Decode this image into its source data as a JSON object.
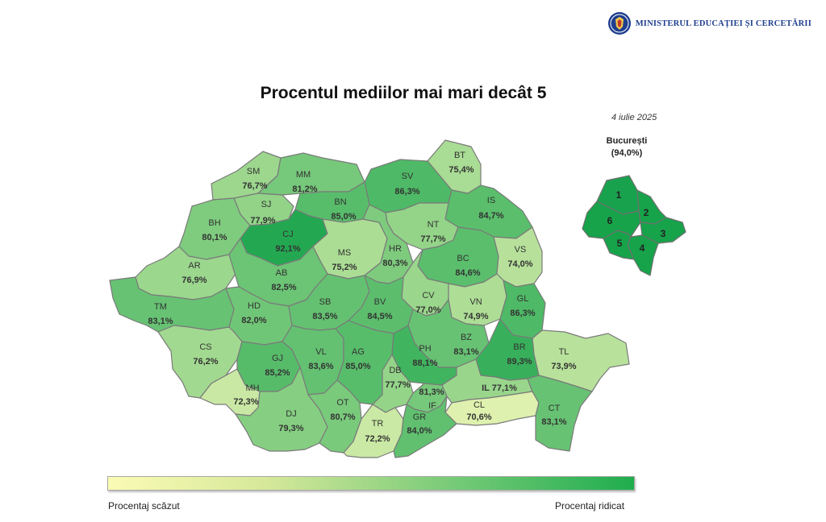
{
  "header": {
    "ministry": "MINISTERUL EDUCAȚIEI ȘI CERCETĂRII",
    "emblem_icon": "coat-of-arms-icon"
  },
  "title": "Procentul mediilor mai mari decât 5",
  "date": "4 iulie 2025",
  "bucharest": {
    "label": "București",
    "value": "(94,0%)",
    "sectors": [
      "1",
      "2",
      "3",
      "4",
      "5",
      "6"
    ]
  },
  "legend": {
    "low": "Procentaj scăzut",
    "high": "Procentaj ridicat",
    "color_low": "#fbfbb5",
    "color_high": "#1fad4e"
  },
  "counties": [
    {
      "code": "SM",
      "value": 76.7,
      "label": "76,7%"
    },
    {
      "code": "MM",
      "value": 81.2,
      "label": "81,2%"
    },
    {
      "code": "BT",
      "value": 75.4,
      "label": "75,4%"
    },
    {
      "code": "SV",
      "value": 86.3,
      "label": "86,3%"
    },
    {
      "code": "SJ",
      "value": 77.9,
      "label": "77,9%"
    },
    {
      "code": "BN",
      "value": 85.0,
      "label": "85,0%"
    },
    {
      "code": "IS",
      "value": 84.7,
      "label": "84,7%"
    },
    {
      "code": "BH",
      "value": 80.1,
      "label": "80,1%"
    },
    {
      "code": "CJ",
      "value": 92.1,
      "label": "92,1%"
    },
    {
      "code": "NT",
      "value": 77.7,
      "label": "77,7%"
    },
    {
      "code": "MS",
      "value": 75.2,
      "label": "75,2%"
    },
    {
      "code": "HR",
      "value": 80.3,
      "label": "80,3%"
    },
    {
      "code": "BC",
      "value": 84.6,
      "label": "84,6%"
    },
    {
      "code": "VS",
      "value": 74.0,
      "label": "74,0%"
    },
    {
      "code": "AR",
      "value": 76.9,
      "label": "76,9%"
    },
    {
      "code": "AB",
      "value": 82.5,
      "label": "82,5%"
    },
    {
      "code": "CV",
      "value": 77.0,
      "label": "77,0%"
    },
    {
      "code": "VN",
      "value": 74.9,
      "label": "74,9%"
    },
    {
      "code": "GL",
      "value": 86.3,
      "label": "86,3%"
    },
    {
      "code": "TM",
      "value": 83.1,
      "label": "83,1%"
    },
    {
      "code": "HD",
      "value": 82.0,
      "label": "82,0%"
    },
    {
      "code": "SB",
      "value": 83.5,
      "label": "83,5%"
    },
    {
      "code": "BV",
      "value": 84.5,
      "label": "84,5%"
    },
    {
      "code": "BZ",
      "value": 83.1,
      "label": "83,1%"
    },
    {
      "code": "TL",
      "value": 73.9,
      "label": "73,9%"
    },
    {
      "code": "CS",
      "value": 76.2,
      "label": "76,2%"
    },
    {
      "code": "GJ",
      "value": 85.2,
      "label": "85,2%"
    },
    {
      "code": "VL",
      "value": 83.6,
      "label": "83,6%"
    },
    {
      "code": "AG",
      "value": 85.0,
      "label": "85,0%"
    },
    {
      "code": "PH",
      "value": 88.1,
      "label": "88,1%"
    },
    {
      "code": "BR",
      "value": 89.3,
      "label": "89,3%"
    },
    {
      "code": "DB",
      "value": 77.7,
      "label": "77,7%"
    },
    {
      "code": "MH",
      "value": 72.3,
      "label": "72,3%"
    },
    {
      "code": "IF",
      "value": 81.3,
      "label": "81,3%"
    },
    {
      "code": "IL",
      "value": 77.1,
      "label": "IL 77,1%"
    },
    {
      "code": "DJ",
      "value": 79.3,
      "label": "79,3%"
    },
    {
      "code": "OT",
      "value": 80.7,
      "label": "80,7%"
    },
    {
      "code": "CL",
      "value": 70.6,
      "label": "70,6%"
    },
    {
      "code": "CT",
      "value": 83.1,
      "label": "83,1%"
    },
    {
      "code": "TR",
      "value": 72.2,
      "label": "72,2%"
    },
    {
      "code": "GR",
      "value": 84.0,
      "label": "84,0%"
    }
  ]
}
